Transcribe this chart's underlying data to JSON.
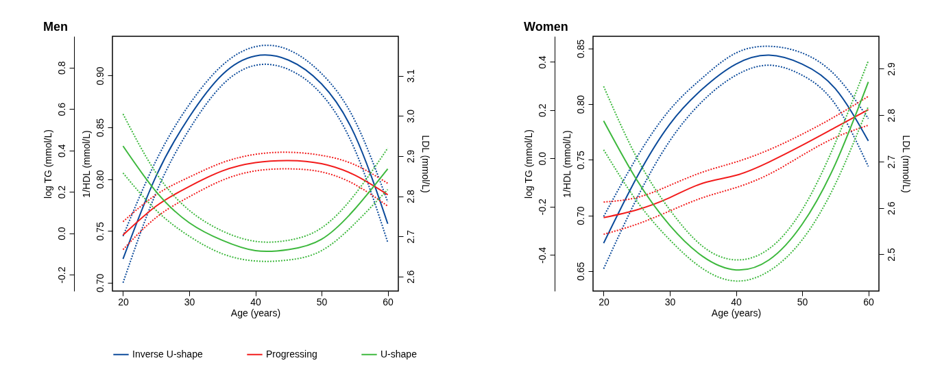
{
  "chart_data": [
    {
      "type": "line",
      "title": "Men",
      "xlabel": "Age (years)",
      "ylabel": "1/HDL (mmol/L)",
      "y2label": "LDL (mmol/L)",
      "y3label": "log TG (mmol/L)",
      "legend": "bottom",
      "xlim": [
        18.4,
        61.6
      ],
      "xticks": [
        20,
        30,
        40,
        50,
        60
      ],
      "ylim": [
        0.692,
        0.938
      ],
      "yticks": [
        {
          "value": 0.7,
          "label": "0.70"
        },
        0.75,
        {
          "value": 0.8,
          "label": "0.80"
        },
        0.85,
        {
          "value": 0.9,
          "label": "0.90"
        }
      ],
      "y2lim": [
        2.564,
        3.198
      ],
      "y2ticks": [
        2.6,
        2.7,
        2.8,
        2.9,
        {
          "value": 3,
          "label": "3.0"
        },
        3.1
      ],
      "y3lim": [
        -0.279,
        0.951
      ],
      "y3ticks": [
        -0.2,
        {
          "value": 0,
          "label": "0.0"
        },
        0.2,
        0.4,
        0.6,
        0.8
      ],
      "x": [
        20,
        25,
        30,
        35,
        40,
        45,
        50,
        55,
        60
      ],
      "series": [
        {
          "name": "Inverse U-shape",
          "color": "#0b4a9a",
          "line_style": "solid",
          "values": [
            0.723,
            0.803,
            0.86,
            0.901,
            0.919,
            0.915,
            0.892,
            0.843,
            0.757
          ]
        },
        {
          "color": "#0b4a9a",
          "line_style": "dotted",
          "values": [
            0.745,
            0.818,
            0.872,
            0.91,
            0.928,
            0.925,
            0.902,
            0.857,
            0.778
          ]
        },
        {
          "color": "#0b4a9a",
          "line_style": "dotted",
          "values": [
            0.7,
            0.787,
            0.848,
            0.891,
            0.91,
            0.906,
            0.882,
            0.829,
            0.739
          ]
        },
        {
          "name": "Progressing",
          "color": "#f21b1b",
          "line_style": "solid",
          "values": [
            0.746,
            0.774,
            0.793,
            0.808,
            0.816,
            0.818,
            0.815,
            0.804,
            0.785
          ]
        },
        {
          "color": "#f21b1b",
          "line_style": "dotted",
          "values": [
            0.759,
            0.785,
            0.802,
            0.816,
            0.824,
            0.826,
            0.823,
            0.814,
            0.796
          ]
        },
        {
          "color": "#f21b1b",
          "line_style": "dotted",
          "values": [
            0.732,
            0.763,
            0.783,
            0.799,
            0.808,
            0.81,
            0.807,
            0.795,
            0.774
          ]
        },
        {
          "name": "U-shape",
          "color": "#3db83d",
          "line_style": "solid",
          "values": [
            0.832,
            0.788,
            0.758,
            0.741,
            0.731,
            0.732,
            0.742,
            0.771,
            0.81
          ]
        },
        {
          "color": "#3db83d",
          "line_style": "dotted",
          "values": [
            0.863,
            0.806,
            0.77,
            0.75,
            0.74,
            0.741,
            0.753,
            0.785,
            0.83
          ]
        },
        {
          "color": "#3db83d",
          "line_style": "dotted",
          "values": [
            0.806,
            0.77,
            0.745,
            0.728,
            0.721,
            0.722,
            0.731,
            0.757,
            0.79
          ]
        }
      ]
    },
    {
      "type": "line",
      "title": "Women",
      "xlabel": "Age (years)",
      "ylabel": "1/HDL (mmol/L)",
      "y2label": "LDL (mmol/L)",
      "y3label": "log TG (mmol/L)",
      "xlim": [
        18.4,
        61.6
      ],
      "xticks": [
        20,
        30,
        40,
        50,
        60
      ],
      "ylim": [
        0.632,
        0.861
      ],
      "yticks": [
        0.65,
        {
          "value": 0.7,
          "label": "0.70"
        },
        0.75,
        {
          "value": 0.8,
          "label": "0.80"
        },
        0.85
      ],
      "y2lim": [
        2.421,
        2.97
      ],
      "y2ticks": [
        2.5,
        2.6,
        2.7,
        2.8,
        2.9
      ],
      "y3lim": [
        -0.55,
        0.506
      ],
      "y3ticks": [
        -0.4,
        -0.2,
        {
          "value": 0,
          "label": "0.0"
        },
        0.2,
        0.4
      ],
      "x": [
        20,
        25,
        30,
        35,
        40,
        45,
        50,
        55,
        60
      ],
      "series": [
        {
          "color": "#0b4a9a",
          "line_style": "solid",
          "values": [
            0.675,
            0.734,
            0.782,
            0.814,
            0.836,
            0.844,
            0.836,
            0.814,
            0.767
          ]
        },
        {
          "color": "#0b4a9a",
          "line_style": "dotted",
          "values": [
            0.699,
            0.752,
            0.795,
            0.824,
            0.846,
            0.852,
            0.846,
            0.826,
            0.787
          ]
        },
        {
          "color": "#0b4a9a",
          "line_style": "dotted",
          "values": [
            0.652,
            0.715,
            0.767,
            0.803,
            0.826,
            0.835,
            0.826,
            0.8,
            0.744
          ]
        },
        {
          "color": "#f21b1b",
          "line_style": "solid",
          "values": [
            0.698,
            0.705,
            0.716,
            0.729,
            0.736,
            0.748,
            0.763,
            0.779,
            0.795
          ]
        },
        {
          "color": "#f21b1b",
          "line_style": "dotted",
          "values": [
            0.712,
            0.716,
            0.727,
            0.739,
            0.748,
            0.759,
            0.773,
            0.789,
            0.807
          ]
        },
        {
          "color": "#f21b1b",
          "line_style": "dotted",
          "values": [
            0.683,
            0.692,
            0.704,
            0.716,
            0.725,
            0.737,
            0.754,
            0.77,
            0.781
          ]
        },
        {
          "color": "#3db83d",
          "line_style": "solid",
          "values": [
            0.785,
            0.732,
            0.691,
            0.663,
            0.651,
            0.66,
            0.692,
            0.746,
            0.82
          ]
        },
        {
          "color": "#3db83d",
          "line_style": "dotted",
          "values": [
            0.816,
            0.752,
            0.705,
            0.672,
            0.66,
            0.67,
            0.705,
            0.765,
            0.839
          ]
        },
        {
          "color": "#3db83d",
          "line_style": "dotted",
          "values": [
            0.759,
            0.713,
            0.678,
            0.652,
            0.641,
            0.65,
            0.678,
            0.728,
            0.798
          ]
        }
      ]
    }
  ]
}
